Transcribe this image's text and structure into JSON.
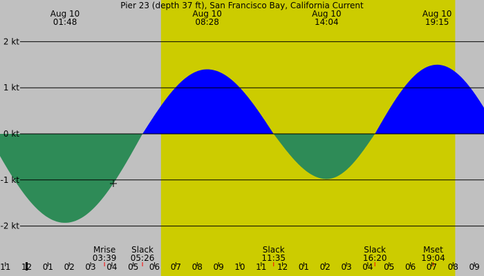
{
  "chart_data": {
    "type": "area",
    "title": "Pier 23 (depth 37 ft), San Francisco Bay, California Current",
    "unit": "kt",
    "x_range_hours": [
      -1.25,
      21.45
    ],
    "ylim": [
      -2.5,
      2.5
    ],
    "y_ticks": [
      {
        "value": 2,
        "label": "2 kt"
      },
      {
        "value": 1,
        "label": "1 kt"
      },
      {
        "value": 0,
        "label": "0 kt"
      },
      {
        "value": -1,
        "label": "-1 kt"
      },
      {
        "value": -2,
        "label": "-2 kt"
      }
    ],
    "daylight": {
      "start_hour": 6.3,
      "end_hour": 20.1
    },
    "extremes": [
      {
        "date": "Aug 10",
        "time": "01:48",
        "hour": 1.8,
        "value": -1.93
      },
      {
        "date": "Aug 10",
        "time": "08:28",
        "hour": 8.467,
        "value": 1.4
      },
      {
        "date": "Aug 10",
        "time": "14:04",
        "hour": 14.067,
        "value": -0.98
      },
      {
        "date": "Aug 10",
        "time": "19:15",
        "hour": 19.25,
        "value": 1.5
      }
    ],
    "slacks": [
      {
        "label": "Slack",
        "time": "05:26",
        "hour": 5.433
      },
      {
        "label": "Slack",
        "time": "11:35",
        "hour": 11.583
      },
      {
        "label": "Slack",
        "time": "16:20",
        "hour": 16.333
      }
    ],
    "moon_events": [
      {
        "label": "Mrise",
        "time": "03:39",
        "hour": 3.65
      },
      {
        "label": "Mset",
        "time": "19:04",
        "hour": 19.067
      }
    ],
    "hour_labels": [
      {
        "hour": -1,
        "label": "11"
      },
      {
        "hour": 0,
        "label": "12"
      },
      {
        "hour": 1,
        "label": "01"
      },
      {
        "hour": 2,
        "label": "02"
      },
      {
        "hour": 3,
        "label": "03"
      },
      {
        "hour": 4,
        "label": "04"
      },
      {
        "hour": 5,
        "label": "05"
      },
      {
        "hour": 6,
        "label": "06"
      },
      {
        "hour": 7,
        "label": "07"
      },
      {
        "hour": 8,
        "label": "08"
      },
      {
        "hour": 9,
        "label": "09"
      },
      {
        "hour": 10,
        "label": "10"
      },
      {
        "hour": 11,
        "label": "11"
      },
      {
        "hour": 12,
        "label": "12"
      },
      {
        "hour": 13,
        "label": "01"
      },
      {
        "hour": 14,
        "label": "02"
      },
      {
        "hour": 15,
        "label": "03"
      },
      {
        "hour": 16,
        "label": "04"
      },
      {
        "hour": 17,
        "label": "05"
      },
      {
        "hour": 18,
        "label": "06"
      },
      {
        "hour": 19,
        "label": "07"
      },
      {
        "hour": 20,
        "label": "08"
      },
      {
        "hour": 21,
        "label": "09"
      }
    ],
    "colors": {
      "night": "#c0c0c0",
      "day": "#cccc00",
      "flood": "#0000ff",
      "ebb": "#2e8b57",
      "midnight_tick": "#000000",
      "event_tick": "#ff0000",
      "gridline": "#000000"
    }
  }
}
